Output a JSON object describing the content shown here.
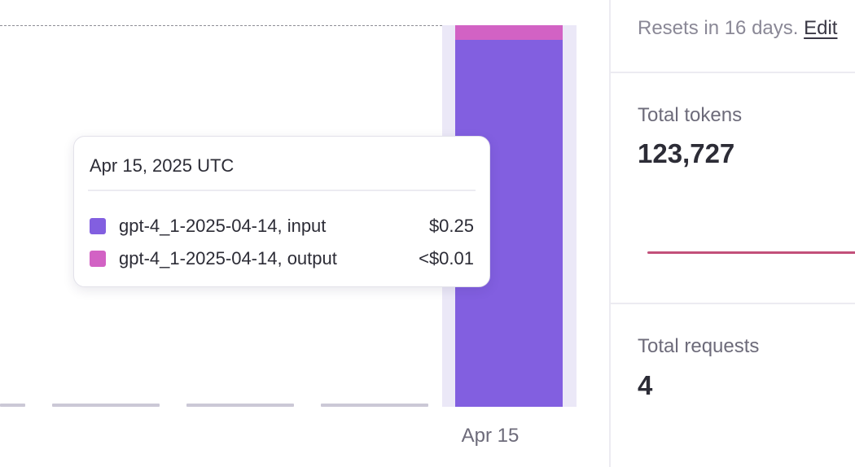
{
  "chart": {
    "x_tick": "Apr 15"
  },
  "chart_data": {
    "type": "bar",
    "categories": [
      "Apr 15"
    ],
    "series": [
      {
        "name": "gpt-4_1-2025-04-14, input",
        "values": [
          0.25
        ],
        "color": "#825fe0"
      },
      {
        "name": "gpt-4_1-2025-04-14, output",
        "values": [
          0.01
        ],
        "color": "#d262c4"
      }
    ],
    "stacked": true,
    "budget_line": "dashed"
  },
  "tooltip": {
    "title": "Apr 15, 2025 UTC",
    "rows": [
      {
        "label": "gpt-4_1-2025-04-14, input",
        "value": "$0.25",
        "color": "#825fe0"
      },
      {
        "label": "gpt-4_1-2025-04-14, output",
        "value": "<$0.01",
        "color": "#d262c4"
      }
    ]
  },
  "panel": {
    "reset_text": "Resets in 16 days.",
    "edit_label": "Edit",
    "total_tokens_label": "Total tokens",
    "total_tokens_value": "123,727",
    "total_requests_label": "Total requests",
    "total_requests_value": "4",
    "sparkline_color": "#c2507a"
  }
}
